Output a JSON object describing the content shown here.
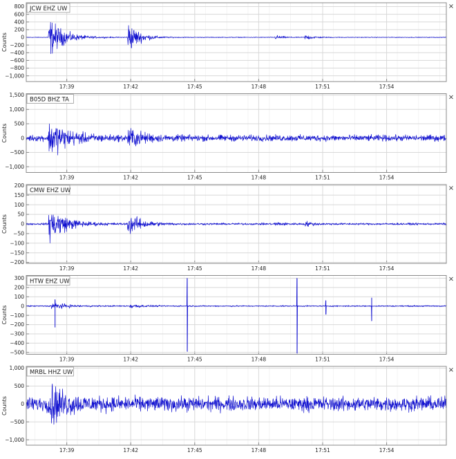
{
  "colors": {
    "trace": "#1010d0",
    "grid": "#d8d8d8",
    "frame": "#8a8a8a",
    "text": "#222222",
    "panel_bg": "#ffffff"
  },
  "close_glyph": "×",
  "chart_data": [
    {
      "type": "line",
      "title": "JCW EHZ UW",
      "ylabel": "Counts",
      "xlim": [
        37.1,
        56.8
      ],
      "ylim": [
        -1150,
        900
      ],
      "x_ticks": [
        39,
        42,
        45,
        48,
        51,
        54
      ],
      "x_tick_labels": [
        "17:39",
        "17:42",
        "17:45",
        "17:48",
        "17:51",
        "17:54"
      ],
      "y_ticks": [
        800,
        600,
        400,
        200,
        0,
        -200,
        -400,
        -600,
        -800,
        -1000
      ],
      "y_tick_labels": [
        "800",
        "600",
        "400",
        "200",
        "0",
        "−200",
        "−400",
        "−600",
        "−800",
        "−1,000"
      ],
      "grid": true,
      "noise_amp": 12,
      "bursts": [
        {
          "t": 38.2,
          "amp": 650,
          "decay": 0.65
        },
        {
          "t": 41.9,
          "amp": 520,
          "decay": 0.5
        },
        {
          "t": 48.8,
          "amp": 70,
          "decay": 0.35
        },
        {
          "t": 50.2,
          "amp": 90,
          "decay": 0.4
        }
      ],
      "spikes": []
    },
    {
      "type": "line",
      "title": "B05D BHZ TA",
      "ylabel": "Counts",
      "xlim": [
        37.1,
        56.8
      ],
      "ylim": [
        -1200,
        1550
      ],
      "x_ticks": [
        39,
        42,
        45,
        48,
        51,
        54
      ],
      "x_tick_labels": [
        "17:39",
        "17:42",
        "17:45",
        "17:48",
        "17:51",
        "17:54"
      ],
      "y_ticks": [
        1500,
        1000,
        500,
        0,
        -500,
        -1000
      ],
      "y_tick_labels": [
        "1,500",
        "1,000",
        "500",
        "0",
        "−500",
        "−1,000"
      ],
      "grid": true,
      "noise_amp": 140,
      "bursts": [
        {
          "t": 38.2,
          "amp": 800,
          "decay": 0.8
        },
        {
          "t": 41.9,
          "amp": 420,
          "decay": 0.6
        }
      ],
      "spikes": []
    },
    {
      "type": "line",
      "title": "CMW EHZ UW",
      "ylabel": "Counts",
      "xlim": [
        37.1,
        56.8
      ],
      "ylim": [
        -205,
        205
      ],
      "x_ticks": [
        39,
        42,
        45,
        48,
        51,
        54
      ],
      "x_tick_labels": [
        "17:39",
        "17:42",
        "17:45",
        "17:48",
        "17:51",
        "17:54"
      ],
      "y_ticks": [
        200,
        150,
        100,
        50,
        0,
        -50,
        -100,
        -150,
        -200
      ],
      "y_tick_labels": [
        "200",
        "150",
        "100",
        "50",
        "0",
        "−50",
        "−100",
        "−150",
        "−200"
      ],
      "grid": true,
      "noise_amp": 7,
      "bursts": [
        {
          "t": 38.2,
          "amp": 130,
          "decay": 0.7
        },
        {
          "t": 41.9,
          "amp": 70,
          "decay": 0.6
        },
        {
          "t": 48.8,
          "amp": 12,
          "decay": 0.3
        },
        {
          "t": 50.2,
          "amp": 14,
          "decay": 0.35
        }
      ],
      "spikes": []
    },
    {
      "type": "line",
      "title": "HTW EHZ UW",
      "ylabel": "Counts",
      "xlim": [
        37.1,
        56.8
      ],
      "ylim": [
        -520,
        330
      ],
      "x_ticks": [
        39,
        42,
        45,
        48,
        51,
        54
      ],
      "x_tick_labels": [
        "17:39",
        "17:42",
        "17:45",
        "17:48",
        "17:51",
        "17:54"
      ],
      "y_ticks": [
        300,
        200,
        100,
        0,
        -100,
        -200,
        -300,
        -400,
        -500
      ],
      "y_tick_labels": [
        "300",
        "200",
        "100",
        "0",
        "−100",
        "−200",
        "−300",
        "−400",
        "−500"
      ],
      "grid": true,
      "noise_amp": 9,
      "bursts": [
        {
          "t": 38.3,
          "amp": 55,
          "decay": 0.6
        },
        {
          "t": 42.0,
          "amp": 28,
          "decay": 0.5
        }
      ],
      "spikes": [
        {
          "t": 38.45,
          "min": -230,
          "max": 70
        },
        {
          "t": 44.65,
          "min": -490,
          "max": 300
        },
        {
          "t": 49.8,
          "min": -510,
          "max": 300
        },
        {
          "t": 51.15,
          "min": -90,
          "max": 60
        },
        {
          "t": 53.3,
          "min": -160,
          "max": 90
        }
      ]
    },
    {
      "type": "line",
      "title": "MRBL HHZ UW",
      "ylabel": "Counts",
      "xlim": [
        37.1,
        56.8
      ],
      "ylim": [
        -1150,
        1050
      ],
      "x_ticks": [
        39,
        42,
        45,
        48,
        51,
        54
      ],
      "x_tick_labels": [
        "17:39",
        "17:42",
        "17:45",
        "17:48",
        "17:51",
        "17:54"
      ],
      "y_ticks": [
        1000,
        500,
        0,
        -500,
        -1000
      ],
      "y_tick_labels": [
        "1,000",
        "500",
        "0",
        "−500",
        "−1,000"
      ],
      "grid": true,
      "noise_amp": 260,
      "bursts": [
        {
          "t": 38.2,
          "amp": 650,
          "decay": 0.7
        }
      ],
      "spikes": []
    }
  ]
}
